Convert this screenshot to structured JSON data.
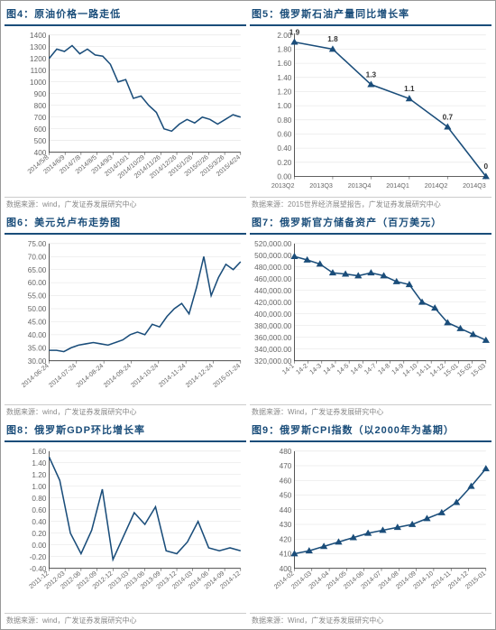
{
  "common": {
    "line_color": "#1a4d7a",
    "grid_color": "#e0e0e0",
    "axis_color": "#333333",
    "tick_font_size": 8,
    "background_color": "#ffffff",
    "line_width": 1.5,
    "marker_size": 4,
    "marker_shape": "triangle-up"
  },
  "panels": [
    {
      "id": "fig4",
      "title": "图4：原油价格一路走低",
      "source": "数据来源：wind，广发证券发展研究中心",
      "chart": {
        "type": "line",
        "x_tick_labels": [
          "2014/5/8",
          "2014/6/9",
          "2014/7/8",
          "2014/8/5",
          "2014/9/3",
          "2014/10/1",
          "2014/10/29",
          "2014/11/26",
          "2014/12/26",
          "2015/1/26",
          "2015/2/26",
          "2015/3/26",
          "2015/4/24"
        ],
        "y_ticks": [
          400,
          500,
          600,
          700,
          800,
          900,
          1000,
          1100,
          1200,
          1300,
          1400
        ],
        "rotate_x": true,
        "series": [
          {
            "values": [
              1200,
              1280,
              1260,
              1310,
              1240,
              1280,
              1230,
              1220,
              1150,
              1000,
              1020,
              860,
              880,
              800,
              740,
              600,
              580,
              640,
              680,
              650,
              700,
              680,
              640,
              680,
              720,
              700
            ]
          }
        ]
      }
    },
    {
      "id": "fig5",
      "title": "图5：俄罗斯石油产量同比增长率",
      "source": "数据来源：2015世界经济展望报告，广发证券发展研究中心",
      "chart": {
        "type": "line_marked_labeled",
        "x_tick_labels": [
          "2013Q2",
          "2013Q3",
          "2013Q4",
          "2014Q1",
          "2014Q2",
          "2014Q3"
        ],
        "y_ticks": [
          0.0,
          0.2,
          0.4,
          0.6,
          0.8,
          1.0,
          1.2,
          1.4,
          1.6,
          1.8,
          2.0
        ],
        "rotate_x": false,
        "series": [
          {
            "values": [
              1.9,
              1.8,
              1.3,
              1.1,
              0.7,
              0.0
            ],
            "point_labels": [
              "1.9",
              "1.8",
              "1.3",
              "1.1",
              "0.7",
              "0"
            ]
          }
        ]
      }
    },
    {
      "id": "fig6",
      "title": "图6：美元兑卢布走势图",
      "source": "数据来源：wind，广发证券发展研究中心",
      "chart": {
        "type": "line",
        "x_tick_labels": [
          "2014-06-24",
          "2014-07-24",
          "2014-08-24",
          "2014-09-24",
          "2014-10-24",
          "2014-11-24",
          "2014-12-24",
          "2015-01-24"
        ],
        "y_ticks": [
          30.0,
          35.0,
          40.0,
          45.0,
          50.0,
          55.0,
          60.0,
          65.0,
          70.0,
          75.0
        ],
        "rotate_x": true,
        "series": [
          {
            "values": [
              34,
              34,
              33.5,
              35,
              36,
              36.5,
              37,
              36.5,
              36,
              37,
              38,
              40,
              41,
              40,
              44,
              43,
              47,
              50,
              52,
              48,
              58,
              70,
              55,
              62,
              67,
              65,
              68
            ]
          }
        ]
      }
    },
    {
      "id": "fig7",
      "title": "图7：俄罗斯官方储备资产（百万美元）",
      "source": "数据来源：Wind，广发证券发展研究中心",
      "chart": {
        "type": "line_marked",
        "x_tick_labels": [
          "14-1",
          "14-2",
          "14-3",
          "14-4",
          "14-5",
          "14-6",
          "14-7",
          "14-8",
          "14-9",
          "14-10",
          "14-11",
          "14-12",
          "15-01",
          "15-02",
          "15-03"
        ],
        "y_ticks": [
          "320,000.00",
          "340,000.00",
          "360,000.00",
          "380,000.00",
          "400,000.00",
          "420,000.00",
          "440,000.00",
          "460,000.00",
          "480,000.00",
          "500,000.00",
          "520,000.00"
        ],
        "y_numeric": [
          320000,
          340000,
          360000,
          380000,
          400000,
          420000,
          440000,
          460000,
          480000,
          500000,
          520000
        ],
        "rotate_x": true,
        "series": [
          {
            "values": [
              498000,
              492000,
              485000,
              470000,
              468000,
              465000,
              470000,
              465000,
              455000,
              450000,
              420000,
              410000,
              385000,
              375000,
              365000,
              355000
            ]
          }
        ]
      }
    },
    {
      "id": "fig8",
      "title": "图8：俄罗斯GDP环比增长率",
      "source": "数据来源：wind，广发证券发展研究中心",
      "chart": {
        "type": "line",
        "x_tick_labels": [
          "2011-12",
          "2012-03",
          "2012-06",
          "2012-09",
          "2012-12",
          "2013-03",
          "2013-06",
          "2013-09",
          "2013-12",
          "2014-03",
          "2014-06",
          "2014-09",
          "2014-12"
        ],
        "y_ticks": [
          -0.4,
          -0.2,
          0.0,
          0.2,
          0.4,
          0.6,
          0.8,
          1.0,
          1.2,
          1.4,
          1.6
        ],
        "rotate_x": true,
        "series": [
          {
            "values": [
              1.5,
              1.1,
              0.2,
              -0.15,
              0.25,
              0.95,
              -0.25,
              0.15,
              0.55,
              0.35,
              0.65,
              -0.1,
              -0.15,
              0.05,
              0.4,
              -0.05,
              -0.1,
              -0.05,
              -0.1
            ]
          }
        ]
      }
    },
    {
      "id": "fig9",
      "title": "图9：俄罗斯CPI指数（以2000年为基期）",
      "source": "数据来源：Wind，广发证券发展研究中心",
      "chart": {
        "type": "line_marked",
        "x_tick_labels": [
          "2014-02",
          "2014-03",
          "2014-04",
          "2014-05",
          "2014-06",
          "2014-07",
          "2014-08",
          "2014-09",
          "2014-10",
          "2014-11",
          "2014-12",
          "2015-01"
        ],
        "y_ticks": [
          400.0,
          410.0,
          420.0,
          430.0,
          440.0,
          450.0,
          460.0,
          470.0,
          480.0
        ],
        "rotate_x": true,
        "series": [
          {
            "values": [
              410,
              412,
              415,
              418,
              421,
              424,
              426,
              428,
              430,
              434,
              438,
              445,
              456,
              468
            ]
          }
        ]
      }
    }
  ]
}
